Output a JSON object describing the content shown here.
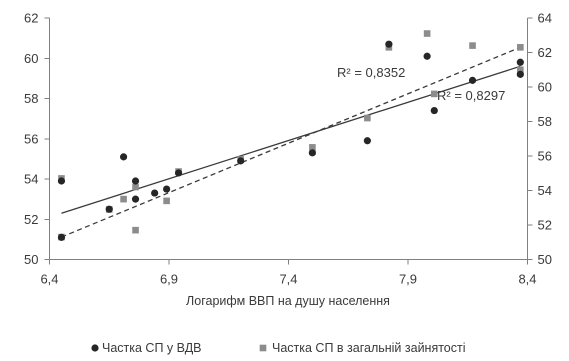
{
  "chart_data": {
    "type": "scatter",
    "grid": false,
    "legend": "bottom",
    "x_axis": {
      "title": "Логарифм ВВП на душу населення",
      "min": 6.4,
      "max": 8.4,
      "ticks": [
        {
          "value": 6.4,
          "label": "6,4"
        },
        {
          "value": 6.9,
          "label": "6,9"
        },
        {
          "value": 7.4,
          "label": "7,4"
        },
        {
          "value": 7.9,
          "label": "7,9"
        },
        {
          "value": 8.4,
          "label": "8,4"
        }
      ]
    },
    "y_axis_left": {
      "min": 50,
      "max": 62,
      "ticks": [
        {
          "value": 50,
          "label": "50"
        },
        {
          "value": 52,
          "label": "52"
        },
        {
          "value": 54,
          "label": "54"
        },
        {
          "value": 56,
          "label": "56"
        },
        {
          "value": 58,
          "label": "58"
        },
        {
          "value": 60,
          "label": "60"
        },
        {
          "value": 62,
          "label": "62"
        }
      ]
    },
    "y_axis_right": {
      "min": 50,
      "max": 64,
      "ticks": [
        {
          "value": 50,
          "label": "50"
        },
        {
          "value": 52,
          "label": "52"
        },
        {
          "value": 54,
          "label": "54"
        },
        {
          "value": 56,
          "label": "56"
        },
        {
          "value": 58,
          "label": "58"
        },
        {
          "value": 60,
          "label": "60"
        },
        {
          "value": 62,
          "label": "62"
        },
        {
          "value": 64,
          "label": "64"
        }
      ]
    },
    "series": [
      {
        "name": "Частка СП у ВДВ",
        "y_axis": "left",
        "marker": "circle",
        "color": "#262626",
        "points": [
          [
            6.45,
            53.9
          ],
          [
            6.45,
            51.1
          ],
          [
            6.65,
            52.5
          ],
          [
            6.71,
            55.1
          ],
          [
            6.76,
            53.9
          ],
          [
            6.76,
            53.0
          ],
          [
            6.84,
            53.3
          ],
          [
            6.89,
            53.5
          ],
          [
            6.94,
            54.3
          ],
          [
            7.2,
            54.9
          ],
          [
            7.5,
            55.3
          ],
          [
            7.73,
            55.9
          ],
          [
            7.82,
            60.7
          ],
          [
            7.98,
            60.1
          ],
          [
            8.01,
            57.4
          ],
          [
            8.17,
            58.9
          ],
          [
            8.37,
            59.8
          ],
          [
            8.37,
            59.2
          ]
        ],
        "trendline": {
          "type": "linear",
          "style": "solid",
          "color": "#3a3a3a",
          "from": [
            6.45,
            52.3
          ],
          "to": [
            8.37,
            59.6
          ],
          "label": "R² = 0,8297"
        }
      },
      {
        "name": "Частка СП в загальній зайнятості",
        "y_axis": "right",
        "marker": "square",
        "color": "#8c8c8c",
        "points": [
          [
            6.45,
            54.7
          ],
          [
            6.45,
            51.3
          ],
          [
            6.65,
            52.9
          ],
          [
            6.71,
            53.5
          ],
          [
            6.76,
            54.2
          ],
          [
            6.76,
            51.7
          ],
          [
            6.89,
            53.4
          ],
          [
            6.94,
            55.1
          ],
          [
            7.2,
            55.8
          ],
          [
            7.5,
            56.5
          ],
          [
            7.73,
            58.2
          ],
          [
            7.82,
            62.3
          ],
          [
            7.98,
            63.1
          ],
          [
            8.01,
            59.6
          ],
          [
            8.17,
            62.4
          ],
          [
            8.37,
            62.3
          ],
          [
            8.37,
            61.0
          ]
        ],
        "trendline": {
          "type": "linear",
          "style": "dashed",
          "color": "#3a3a3a",
          "from": [
            6.45,
            51.3
          ],
          "to": [
            8.37,
            62.3
          ],
          "label": "R² = 0,8352"
        }
      }
    ]
  }
}
